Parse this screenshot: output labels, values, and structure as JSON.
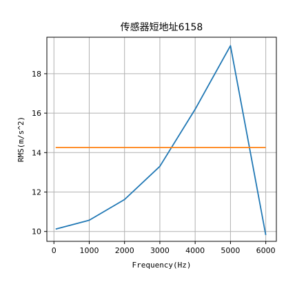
{
  "chart_data": {
    "type": "line",
    "title": "传感器短地址6158",
    "xlabel": "Frequency(Hz)",
    "ylabel": "RMS(m/s^2)",
    "xlim": [
      -200,
      6300
    ],
    "ylim": [
      9.5,
      19.85
    ],
    "xticks": [
      0,
      1000,
      2000,
      3000,
      4000,
      5000,
      6000
    ],
    "yticks": [
      10,
      12,
      14,
      16,
      18
    ],
    "grid": true,
    "series": [
      {
        "color": "#1f77b4",
        "x": [
          50,
          1000,
          2000,
          3000,
          4000,
          5000,
          6000
        ],
        "y": [
          10.12,
          10.57,
          11.62,
          13.3,
          16.2,
          19.42,
          9.82
        ]
      },
      {
        "color": "#ff7f0e",
        "x": [
          50,
          6000
        ],
        "y": [
          14.26,
          14.26
        ]
      }
    ]
  }
}
